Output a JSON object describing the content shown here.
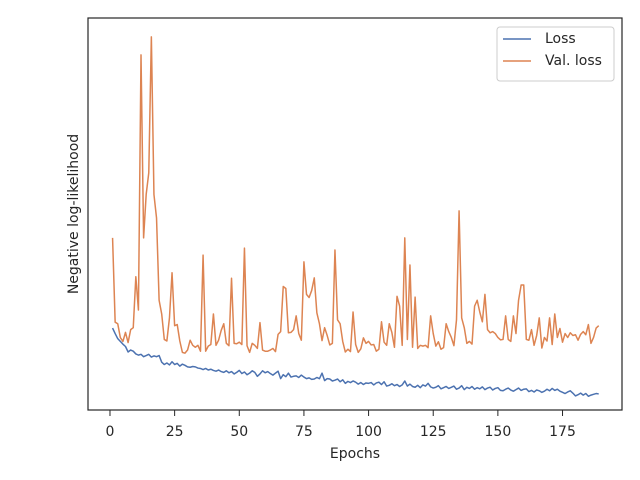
{
  "chart_data": {
    "type": "line",
    "xlabel": "Epochs",
    "ylabel": "Negative log-likelihood",
    "x": [
      1,
      2,
      3,
      4,
      5,
      6,
      7,
      8,
      9,
      10,
      11,
      12,
      13,
      14,
      15,
      16,
      17,
      18,
      19,
      20,
      21,
      22,
      23,
      24,
      25,
      26,
      27,
      28,
      29,
      30,
      31,
      32,
      33,
      34,
      35,
      36,
      37,
      38,
      39,
      40,
      41,
      42,
      43,
      44,
      45,
      46,
      47,
      48,
      49,
      50,
      51,
      52,
      53,
      54,
      55,
      56,
      57,
      58,
      59,
      60,
      61,
      62,
      63,
      64,
      65,
      66,
      67,
      68,
      69,
      70,
      71,
      72,
      73,
      74,
      75,
      76,
      77,
      78,
      79,
      80,
      81,
      82,
      83,
      84,
      85,
      86,
      87,
      88,
      89,
      90,
      91,
      92,
      93,
      94,
      95,
      96,
      97,
      98,
      99,
      100,
      101,
      102,
      103,
      104,
      105,
      106,
      107,
      108,
      109,
      110,
      111,
      112,
      113,
      114,
      115,
      116,
      117,
      118,
      119,
      120,
      121,
      122,
      123,
      124,
      125,
      126,
      127,
      128,
      129,
      130,
      131,
      132,
      133,
      134,
      135,
      136,
      137,
      138,
      139,
      140,
      141,
      142,
      143,
      144,
      145,
      146,
      147,
      148,
      149,
      150,
      151,
      152,
      153,
      154,
      155,
      156,
      157,
      158,
      159,
      160,
      161,
      162,
      163,
      164,
      165,
      166,
      167,
      168,
      169,
      170,
      171,
      172,
      173,
      174,
      175,
      176,
      177,
      178,
      179,
      180,
      181,
      182,
      183,
      184,
      185,
      186,
      187,
      188,
      189
    ],
    "series": [
      {
        "name": "Loss",
        "color": "#4c72b0",
        "values": [
          20.9,
          19.5,
          18.2,
          17.5,
          16.8,
          16.2,
          14.8,
          15.3,
          15.0,
          14.3,
          14.0,
          14.2,
          13.6,
          13.9,
          14.2,
          13.5,
          13.8,
          13.6,
          13.9,
          12.2,
          11.6,
          12.0,
          11.5,
          12.3,
          11.6,
          11.9,
          11.2,
          11.7,
          11.4,
          11.0,
          10.9,
          11.1,
          11.0,
          10.7,
          10.6,
          10.3,
          10.6,
          10.2,
          10.4,
          10.1,
          9.9,
          10.2,
          9.8,
          9.6,
          10.0,
          9.5,
          9.8,
          9.2,
          9.6,
          10.1,
          9.3,
          9.7,
          9.0,
          9.4,
          10.0,
          9.6,
          8.6,
          9.2,
          10.0,
          9.5,
          9.8,
          9.3,
          8.9,
          9.4,
          9.9,
          8.0,
          9.0,
          8.5,
          9.4,
          8.4,
          8.6,
          8.7,
          8.3,
          8.9,
          8.4,
          8.0,
          8.2,
          7.8,
          7.9,
          8.3,
          8.0,
          9.4,
          7.5,
          8.0,
          7.9,
          7.4,
          7.6,
          7.9,
          7.2,
          7.7,
          6.8,
          7.3,
          7.0,
          7.4,
          7.1,
          6.6,
          7.0,
          6.5,
          6.9,
          6.8,
          7.0,
          6.4,
          6.9,
          7.1,
          6.5,
          7.2,
          6.1,
          6.3,
          6.7,
          6.2,
          6.5,
          6.0,
          6.4,
          7.4,
          6.1,
          6.6,
          6.0,
          5.8,
          6.3,
          5.7,
          6.4,
          6.1,
          6.8,
          5.9,
          5.6,
          5.8,
          6.2,
          5.4,
          5.7,
          6.0,
          5.5,
          5.8,
          6.1,
          5.3,
          5.6,
          6.2,
          5.2,
          5.8,
          5.5,
          6.0,
          5.3,
          5.7,
          5.4,
          5.9,
          5.2,
          5.6,
          5.8,
          5.1,
          5.5,
          5.7,
          5.0,
          4.9,
          5.3,
          5.6,
          5.1,
          4.8,
          5.2,
          5.6,
          5.0,
          5.3,
          5.4,
          4.7,
          5.0,
          4.6,
          5.1,
          4.9,
          4.5,
          4.8,
          5.3,
          4.9,
          5.5,
          5.0,
          5.3,
          4.8,
          4.5,
          4.2,
          4.6,
          4.9,
          4.3,
          3.6,
          3.9,
          4.3,
          3.8,
          4.2,
          3.5,
          3.8,
          4.0,
          4.2,
          4.1
        ]
      },
      {
        "name": "Val. loss",
        "color": "#dd8452",
        "values": [
          43.9,
          22.4,
          22.0,
          18.5,
          17.5,
          19.8,
          17.2,
          20.5,
          21.0,
          34.0,
          25.5,
          90.6,
          43.9,
          55.0,
          60.5,
          95.2,
          55.0,
          49.0,
          28.0,
          24.5,
          18.0,
          17.6,
          23.5,
          35.0,
          21.5,
          21.8,
          17.6,
          14.7,
          14.5,
          15.3,
          17.8,
          16.5,
          16.0,
          16.5,
          15.0,
          39.5,
          15.0,
          16.3,
          16.7,
          24.5,
          16.5,
          17.8,
          20.3,
          22.0,
          17.0,
          16.4,
          33.6,
          17.0,
          16.9,
          17.3,
          16.7,
          41.3,
          16.4,
          14.7,
          17.0,
          16.5,
          15.7,
          22.3,
          15.3,
          15.0,
          15.0,
          15.3,
          15.7,
          14.9,
          19.3,
          20.0,
          31.5,
          31.0,
          19.7,
          19.8,
          20.5,
          24.0,
          19.5,
          17.8,
          37.8,
          29.5,
          28.7,
          30.5,
          33.7,
          24.8,
          22.0,
          17.7,
          21.0,
          19.0,
          16.6,
          17.0,
          40.8,
          23.0,
          22.0,
          17.5,
          14.8,
          15.5,
          14.9,
          25.0,
          16.7,
          14.7,
          15.6,
          18.4,
          17.0,
          17.5,
          16.6,
          16.7,
          15.0,
          15.5,
          22.5,
          17.3,
          16.5,
          22.0,
          19.8,
          16.0,
          29.0,
          26.5,
          16.5,
          43.9,
          18.0,
          37.0,
          16.0,
          28.8,
          15.7,
          16.5,
          16.3,
          16.5,
          15.9,
          24.0,
          19.5,
          16.3,
          17.4,
          15.5,
          15.9,
          22.0,
          20.0,
          18.5,
          16.4,
          23.0,
          50.8,
          23.5,
          21.0,
          17.0,
          17.5,
          16.8,
          26.5,
          28.0,
          25.0,
          22.5,
          29.5,
          20.5,
          19.7,
          20.0,
          19.5,
          18.5,
          17.9,
          18.0,
          24.0,
          18.0,
          17.5,
          24.0,
          19.5,
          28.0,
          31.9,
          31.9,
          18.0,
          17.8,
          20.5,
          16.5,
          19.0,
          23.5,
          15.8,
          18.5,
          17.6,
          23.5,
          16.7,
          24.5,
          18.5,
          20.8,
          17.3,
          19.5,
          18.5,
          19.7,
          19.0,
          19.2,
          17.8,
          19.3,
          20.0,
          19.2,
          21.8,
          17.0,
          18.5,
          20.9,
          21.5
        ]
      }
    ],
    "xlim": [
      -8.5,
      198
    ],
    "xticks": [
      0,
      25,
      50,
      75,
      100,
      125,
      150,
      175
    ],
    "ylim": [
      0,
      100
    ],
    "legend": "upper right"
  }
}
